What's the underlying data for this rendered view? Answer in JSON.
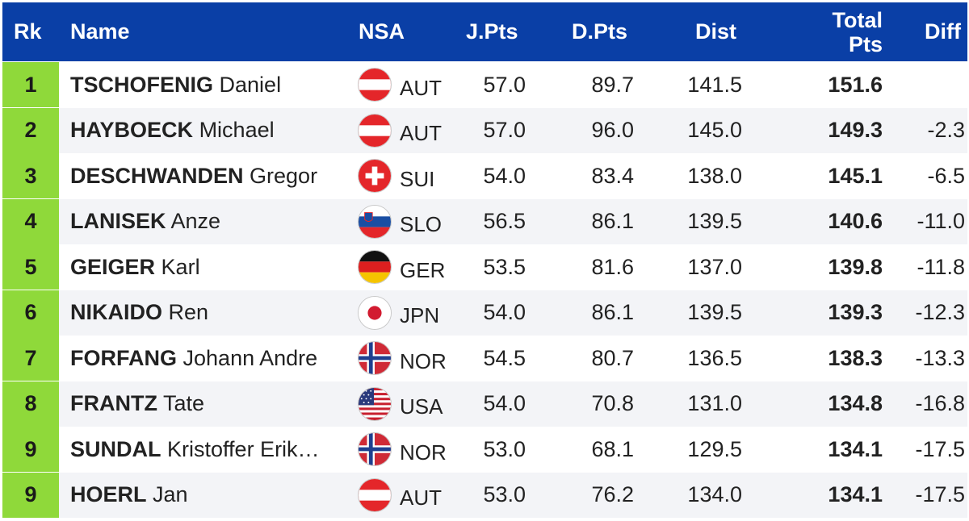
{
  "header": {
    "rk": "Rk",
    "name": "Name",
    "nsa": "NSA",
    "jpts": "J.Pts",
    "dpts": "D.Pts",
    "dist": "Dist",
    "total_line1": "Total",
    "total_line2": "Pts",
    "diff": "Diff"
  },
  "colors": {
    "header_bg": "#0a3fa6",
    "rank_bg": "#8fd93a",
    "row_alt": "#f3f4f7"
  },
  "rows": [
    {
      "rk": "1",
      "last": "TSCHOFENIG",
      "first": "Daniel",
      "nsa": "AUT",
      "flag_icon": "flag-austria-icon",
      "jpts": "57.0",
      "dpts": "89.7",
      "dist": "141.5",
      "total": "151.6",
      "diff": ""
    },
    {
      "rk": "2",
      "last": "HAYBOECK",
      "first": "Michael",
      "nsa": "AUT",
      "flag_icon": "flag-austria-icon",
      "jpts": "57.0",
      "dpts": "96.0",
      "dist": "145.0",
      "total": "149.3",
      "diff": "-2.3"
    },
    {
      "rk": "3",
      "last": "DESCHWANDEN",
      "first": "Gregor",
      "nsa": "SUI",
      "flag_icon": "flag-switzerland-icon",
      "jpts": "54.0",
      "dpts": "83.4",
      "dist": "138.0",
      "total": "145.1",
      "diff": "-6.5"
    },
    {
      "rk": "4",
      "last": "LANISEK",
      "first": "Anze",
      "nsa": "SLO",
      "flag_icon": "flag-slovenia-icon",
      "jpts": "56.5",
      "dpts": "86.1",
      "dist": "139.5",
      "total": "140.6",
      "diff": "-11.0"
    },
    {
      "rk": "5",
      "last": "GEIGER",
      "first": "Karl",
      "nsa": "GER",
      "flag_icon": "flag-germany-icon",
      "jpts": "53.5",
      "dpts": "81.6",
      "dist": "137.0",
      "total": "139.8",
      "diff": "-11.8"
    },
    {
      "rk": "6",
      "last": "NIKAIDO",
      "first": "Ren",
      "nsa": "JPN",
      "flag_icon": "flag-japan-icon",
      "jpts": "54.0",
      "dpts": "86.1",
      "dist": "139.5",
      "total": "139.3",
      "diff": "-12.3"
    },
    {
      "rk": "7",
      "last": "FORFANG",
      "first": "Johann Andre",
      "nsa": "NOR",
      "flag_icon": "flag-norway-icon",
      "jpts": "54.5",
      "dpts": "80.7",
      "dist": "136.5",
      "total": "138.3",
      "diff": "-13.3"
    },
    {
      "rk": "8",
      "last": "FRANTZ",
      "first": "Tate",
      "nsa": "USA",
      "flag_icon": "flag-usa-icon",
      "jpts": "54.0",
      "dpts": "70.8",
      "dist": "131.0",
      "total": "134.8",
      "diff": "-16.8"
    },
    {
      "rk": "9",
      "last": "SUNDAL",
      "first": "Kristoffer Erik…",
      "nsa": "NOR",
      "flag_icon": "flag-norway-icon",
      "jpts": "53.0",
      "dpts": "68.1",
      "dist": "129.5",
      "total": "134.1",
      "diff": "-17.5"
    },
    {
      "rk": "9",
      "last": "HOERL",
      "first": "Jan",
      "nsa": "AUT",
      "flag_icon": "flag-austria-icon",
      "jpts": "53.0",
      "dpts": "76.2",
      "dist": "134.0",
      "total": "134.1",
      "diff": "-17.5"
    }
  ]
}
